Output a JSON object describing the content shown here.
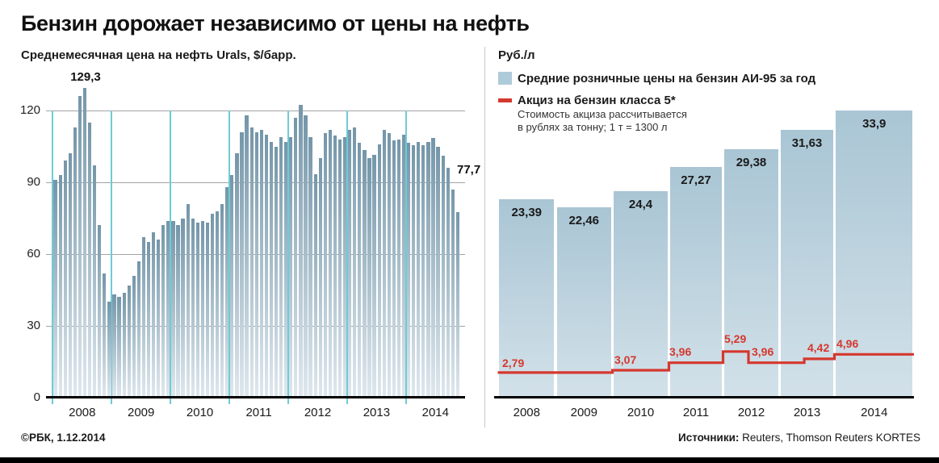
{
  "title": "Бензин дорожает независимо от цены на нефть",
  "colors": {
    "accent_red": "#d5382e",
    "oil_bar_top": "#7496a9",
    "oil_bar_bottom": "#dfe8ee",
    "teal_year_line": "#6fcbd6",
    "gas_bar_top": "#a9c5d4",
    "gas_bar_bottom": "#d2e1e9",
    "legend_swatch_blue": "#aecbd9",
    "gridline_gray": "#a3a3a3",
    "axis_black": "#000000"
  },
  "chart_data": [
    {
      "type": "bar",
      "name": "urals-oil-price-monthly",
      "title": "Среднемесячная цена на нефть Urals, $/барр.",
      "ylabel": "$/барр.",
      "y_ticks": [
        0,
        30,
        60,
        90,
        120
      ],
      "ylim": [
        0,
        132
      ],
      "grid": "horizontal-gray-plus-teal-year-separators",
      "years": [
        "2008",
        "2009",
        "2010",
        "2011",
        "2012",
        "2013",
        "2014"
      ],
      "months_span": "2008-01 .. 2014-11",
      "monthly_values": [
        91,
        93,
        99,
        102,
        113,
        126,
        129.3,
        115,
        97,
        72,
        52,
        40,
        43,
        42,
        44,
        47,
        51,
        57,
        67,
        65,
        69,
        66,
        72,
        74,
        74,
        72,
        75,
        81,
        75,
        73,
        74,
        73,
        77,
        78,
        81,
        88,
        93,
        102,
        111,
        118,
        113,
        111,
        112,
        110,
        107,
        105,
        109,
        107,
        109,
        117,
        122.5,
        118,
        109,
        93.5,
        100,
        110.5,
        112,
        109.5,
        108,
        109,
        112,
        113,
        106.5,
        103.5,
        100,
        101.5,
        106,
        112,
        110.5,
        107.5,
        108,
        110,
        106.5,
        105.5,
        107,
        105.5,
        107,
        108.5,
        105,
        101,
        96,
        87,
        77.7
      ],
      "annotations": [
        {
          "label": "129,3",
          "value": 129.3,
          "month_index": 6
        },
        {
          "label": "77,7",
          "value": 77.7,
          "month_index": 82
        }
      ]
    },
    {
      "type": "bar",
      "name": "ai95-gasoline-retail-price-yearly",
      "unit_label": "Руб./л",
      "legend": [
        {
          "marker": "bar",
          "label": "Средние розничные цены на бензин АИ-95 за год"
        },
        {
          "marker": "line",
          "label": "Акциз на бензин класса 5*"
        }
      ],
      "note_lines": [
        "Стоимость акциза рассчитывается",
        "в рублях за тонну; 1 т = 1300 л"
      ],
      "categories": [
        "2008",
        "2009",
        "2010",
        "2011",
        "2012",
        "2013",
        "2014"
      ],
      "values": [
        23.39,
        22.46,
        24.4,
        27.27,
        29.38,
        31.63,
        33.9
      ],
      "value_labels": [
        "23,39",
        "22,46",
        "24,4",
        "27,27",
        "29,38",
        "31,63",
        "33,9"
      ],
      "line_series": {
        "name": "Акциз на бензин класса 5*",
        "type": "step",
        "segments": [
          {
            "label": "2,79",
            "value": 2.79,
            "from_year": 2008,
            "to_year": 2010
          },
          {
            "label": "3,07",
            "value": 3.07,
            "from_year": 2010,
            "to_year": 2011
          },
          {
            "label": "3,96",
            "value": 3.96,
            "from_year": 2011,
            "to_year": 2012
          },
          {
            "label": "5,29",
            "value": 5.29,
            "from_year": 2012,
            "to_year": 2012.45
          },
          {
            "label": "3,96",
            "value": 3.96,
            "from_year": 2012.45,
            "to_year": 2013.45
          },
          {
            "label": "4,42",
            "value": 4.42,
            "from_year": 2013.45,
            "to_year": 2014
          },
          {
            "label": "4,96",
            "value": 4.96,
            "from_year": 2014,
            "to_year": 2015
          }
        ]
      }
    }
  ],
  "footer": {
    "credit": "©РБК, 1.12.2014",
    "sources_label": "Источники:",
    "sources": " Reuters, Thomson Reuters KORTES"
  }
}
